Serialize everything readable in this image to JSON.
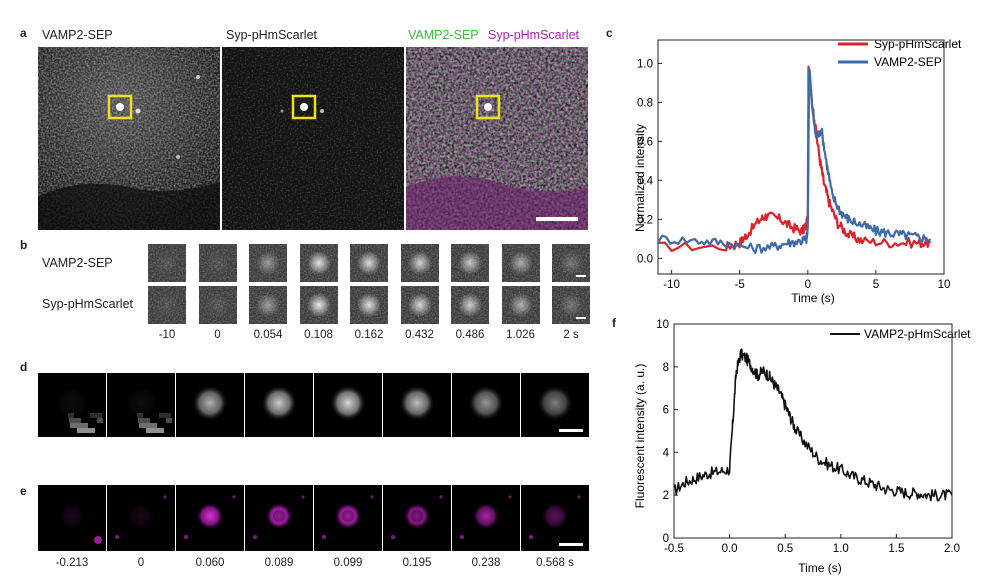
{
  "panel_labels": {
    "a": "a",
    "b": "b",
    "c": "c",
    "d": "d",
    "e": "e",
    "f": "f"
  },
  "panel_a": {
    "titles": {
      "vamp2": "VAMP2-SEP",
      "syp": "Syp-pHmScarlet",
      "merge_green": "VAMP2-SEP",
      "merge_magenta": "Syp-pHmScarlet"
    }
  },
  "panel_b": {
    "rows": [
      "VAMP2-SEP",
      "Syp-pHmScarlet"
    ],
    "times": [
      "-10",
      "0",
      "0.054",
      "0.108",
      "0.162",
      "0.432",
      "0.486",
      "1.026",
      "2 s"
    ],
    "brightness": [
      0.1,
      0.1,
      0.45,
      0.85,
      0.8,
      0.75,
      0.7,
      0.55,
      0.25
    ]
  },
  "panel_d": {
    "brightness": [
      0.05,
      0.05,
      0.7,
      0.8,
      0.85,
      0.75,
      0.6,
      0.5
    ]
  },
  "panel_e": {
    "times": [
      "-0.213",
      "0",
      "0.060",
      "0.089",
      "0.099",
      "0.195",
      "0.238",
      "0.568 s"
    ],
    "brightness": [
      0.1,
      0.1,
      0.85,
      0.9,
      0.9,
      0.75,
      0.65,
      0.35
    ]
  },
  "colors": {
    "green": "#3dbb3d",
    "magenta": "#b11fb0",
    "red": "#e0202a",
    "blue": "#3d6aa8",
    "yellow": "#f2e01a"
  },
  "chart_data": [
    {
      "id": "c",
      "type": "line",
      "xlabel": "Time (s)",
      "ylabel": "Normalized intensity",
      "xlim": [
        -11,
        10
      ],
      "ylim": [
        -0.08,
        1.12
      ],
      "xticks": [
        -10,
        -5,
        0,
        5,
        10
      ],
      "yticks": [
        0.0,
        0.2,
        0.4,
        0.6,
        0.8,
        1.0
      ],
      "xtick_labels": [
        "-10",
        "-5",
        "0",
        "5",
        "10"
      ],
      "ytick_labels": [
        "0.0",
        "0.2",
        "0.4",
        "0.6",
        "0.8",
        "1.0"
      ],
      "legend": "top-right",
      "series": [
        {
          "name": "Syp-pHmScarlet",
          "color": "#e0202a",
          "x": [
            -11,
            -6,
            -5,
            -4.5,
            -3.5,
            -3,
            -2,
            -1.2,
            -0.4,
            -0.1,
            0.0,
            0.05,
            0.2,
            0.5,
            0.9,
            1.2,
            1.6,
            2.2,
            3,
            4,
            6,
            8,
            9
          ],
          "y": [
            0.06,
            0.06,
            0.08,
            0.12,
            0.2,
            0.22,
            0.2,
            0.16,
            0.14,
            0.17,
            0.22,
            0.98,
            0.85,
            0.7,
            0.5,
            0.38,
            0.28,
            0.18,
            0.12,
            0.09,
            0.08,
            0.08,
            0.08
          ]
        },
        {
          "name": "VAMP2-SEP",
          "color": "#3d6aa8",
          "x": [
            -11,
            -8,
            -6,
            -4,
            -2.5,
            -1.5,
            -0.5,
            -0.1,
            0.0,
            0.1,
            0.3,
            0.6,
            1.0,
            1.4,
            1.8,
            2.4,
            3,
            4,
            5,
            6,
            7,
            8,
            9
          ],
          "y": [
            0.1,
            0.09,
            0.08,
            0.05,
            0.06,
            0.08,
            0.09,
            0.1,
            0.15,
            0.99,
            0.8,
            0.62,
            0.66,
            0.48,
            0.32,
            0.24,
            0.2,
            0.17,
            0.14,
            0.13,
            0.12,
            0.11,
            0.1
          ]
        }
      ]
    },
    {
      "id": "f",
      "type": "line",
      "xlabel": "Time (s)",
      "ylabel": "Fluorescent intensity (a. u.)",
      "xlim": [
        -0.5,
        2.0
      ],
      "ylim": [
        0,
        10
      ],
      "xticks": [
        -0.5,
        0.0,
        0.5,
        1.0,
        1.5,
        2.0
      ],
      "yticks": [
        0,
        2,
        4,
        6,
        8,
        10
      ],
      "xtick_labels": [
        "-0.5",
        "0.0",
        "0.5",
        "1.0",
        "1.5",
        "2.0"
      ],
      "ytick_labels": [
        "0",
        "2",
        "4",
        "6",
        "8",
        "10"
      ],
      "legend": "top-right",
      "series": [
        {
          "name": "VAMP2-pHmScarlet",
          "color": "#111111",
          "x": [
            -0.5,
            -0.4,
            -0.3,
            -0.2,
            -0.1,
            0.0,
            0.03,
            0.06,
            0.1,
            0.15,
            0.2,
            0.25,
            0.3,
            0.35,
            0.4,
            0.45,
            0.5,
            0.55,
            0.6,
            0.7,
            0.8,
            0.9,
            1.0,
            1.1,
            1.2,
            1.3,
            1.4,
            1.5,
            1.6,
            1.7,
            1.8,
            1.9,
            2.0
          ],
          "y": [
            2.2,
            2.6,
            2.8,
            3.0,
            3.1,
            3.2,
            5.5,
            7.8,
            8.6,
            8.4,
            8.0,
            7.6,
            7.8,
            7.6,
            7.2,
            6.8,
            6.2,
            5.6,
            5.0,
            4.3,
            3.7,
            3.4,
            3.2,
            2.9,
            2.7,
            2.5,
            2.3,
            2.2,
            2.1,
            2.1,
            2.0,
            2.0,
            2.0
          ]
        }
      ]
    }
  ]
}
